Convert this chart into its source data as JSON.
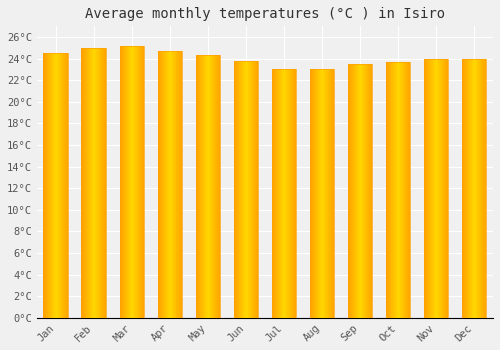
{
  "title": "Average monthly temperatures (°C ) in Isiro",
  "months": [
    "Jan",
    "Feb",
    "Mar",
    "Apr",
    "May",
    "Jun",
    "Jul",
    "Aug",
    "Sep",
    "Oct",
    "Nov",
    "Dec"
  ],
  "values": [
    24.5,
    25.0,
    25.2,
    24.7,
    24.3,
    23.8,
    23.0,
    23.0,
    23.5,
    23.7,
    24.0,
    24.0
  ],
  "bar_color_center": "#FFD700",
  "bar_color_edge": "#FFA500",
  "background_color": "#f0f0f0",
  "plot_bg_color": "#f0f0f0",
  "grid_color": "#ffffff",
  "ylim": [
    0,
    27
  ],
  "ytick_step": 2,
  "title_fontsize": 10,
  "tick_fontsize": 7.5,
  "tick_font_family": "monospace"
}
